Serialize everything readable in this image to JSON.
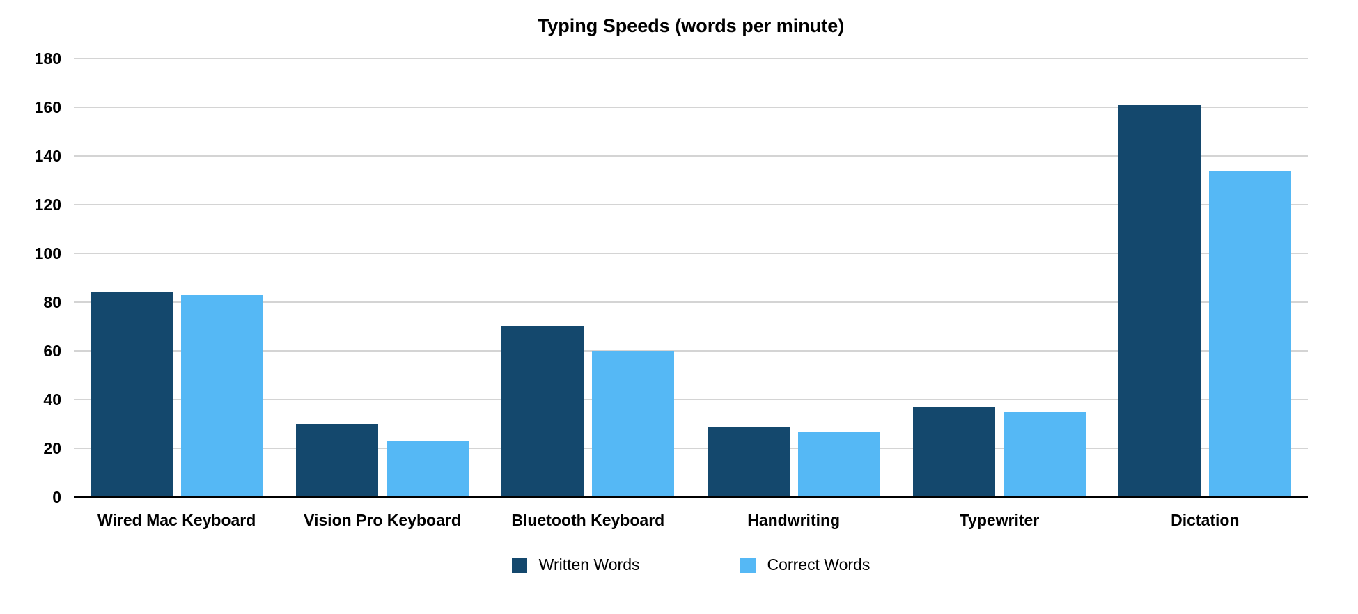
{
  "chart_data": {
    "type": "bar",
    "title": "Typing Speeds (words per minute)",
    "categories": [
      "Wired Mac Keyboard",
      "Vision Pro Keyboard",
      "Bluetooth Keyboard",
      "Handwriting",
      "Typewriter",
      "Dictation"
    ],
    "series": [
      {
        "name": "Written Words",
        "color": "#14486D",
        "values": [
          84,
          30,
          70,
          29,
          37,
          161
        ]
      },
      {
        "name": "Correct Words",
        "color": "#55B8F5",
        "values": [
          83,
          23,
          60,
          27,
          35,
          134
        ]
      }
    ],
    "xlabel": "",
    "ylabel": "",
    "ylim": [
      0,
      180
    ],
    "yticks": [
      0,
      20,
      40,
      60,
      80,
      100,
      120,
      140,
      160,
      180
    ],
    "grid": "horizontal",
    "gridline_color": "#d4d4d4",
    "axis_color": "#000000",
    "legend_position": "bottom-center"
  },
  "legend": {
    "written_label": "Written Words",
    "correct_label": "Correct Words"
  }
}
